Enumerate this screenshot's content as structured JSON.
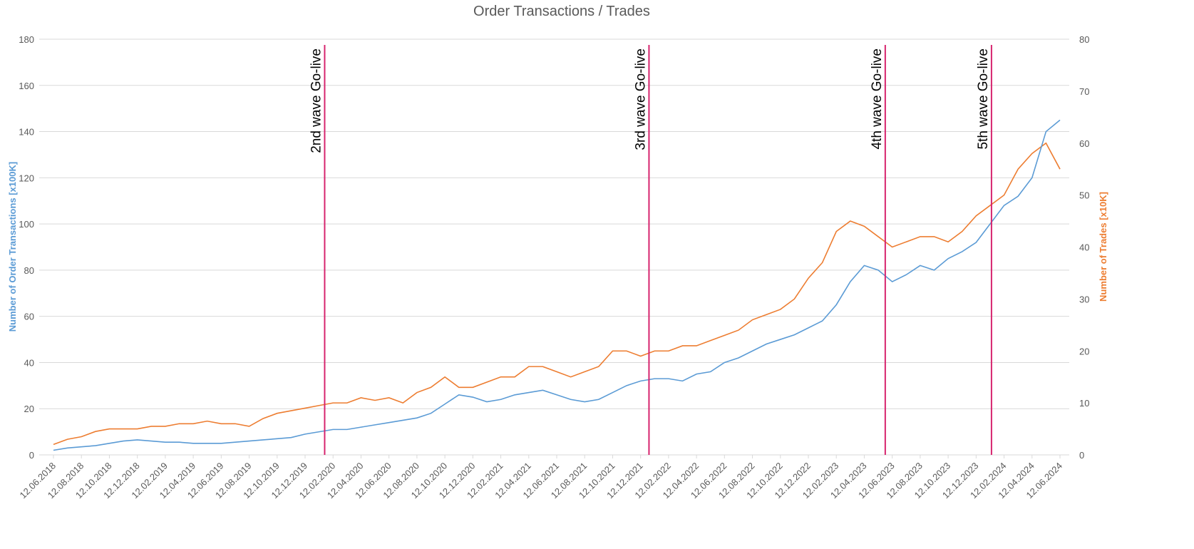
{
  "chart_data": {
    "type": "line",
    "title": "Order Transactions / Trades",
    "ylabel": "Number of Order Transactions  [x100K]",
    "y2label": "Number of Trades [x10K]",
    "xlim": [
      0,
      72
    ],
    "xticks": [
      {
        "value": 0,
        "label": "12.06.2018"
      },
      {
        "value": 2,
        "label": "12.08.2018"
      },
      {
        "value": 4,
        "label": "12.10.2018"
      },
      {
        "value": 6,
        "label": "12.12.2018"
      },
      {
        "value": 8,
        "label": "12.02.2019"
      },
      {
        "value": 10,
        "label": "12.04.2019"
      },
      {
        "value": 12,
        "label": "12.06.2019"
      },
      {
        "value": 14,
        "label": "12.08.2019"
      },
      {
        "value": 16,
        "label": "12.10.2019"
      },
      {
        "value": 18,
        "label": "12.12.2019"
      },
      {
        "value": 20,
        "label": "12.02.2020"
      },
      {
        "value": 22,
        "label": "12.04.2020"
      },
      {
        "value": 24,
        "label": "12.06.2020"
      },
      {
        "value": 26,
        "label": "12.08.2020"
      },
      {
        "value": 28,
        "label": "12.10.2020"
      },
      {
        "value": 30,
        "label": "12.12.2020"
      },
      {
        "value": 32,
        "label": "12.02.2021"
      },
      {
        "value": 34,
        "label": "12.04.2021"
      },
      {
        "value": 36,
        "label": "12.06.2021"
      },
      {
        "value": 38,
        "label": "12.08.2021"
      },
      {
        "value": 40,
        "label": "12.10.2021"
      },
      {
        "value": 42,
        "label": "12.12.2021"
      },
      {
        "value": 44,
        "label": "12.02.2022"
      },
      {
        "value": 46,
        "label": "12.04.2022"
      },
      {
        "value": 48,
        "label": "12.06.2022"
      },
      {
        "value": 50,
        "label": "12.08.2022"
      },
      {
        "value": 52,
        "label": "12.10.2022"
      },
      {
        "value": 54,
        "label": "12.12.2022"
      },
      {
        "value": 56,
        "label": "12.02.2023"
      },
      {
        "value": 58,
        "label": "12.04.2023"
      },
      {
        "value": 60,
        "label": "12.06.2023"
      },
      {
        "value": 62,
        "label": "12.08.2023"
      },
      {
        "value": 64,
        "label": "12.10.2023"
      },
      {
        "value": 66,
        "label": "12.12.2023"
      },
      {
        "value": 68,
        "label": "12.02.2024"
      },
      {
        "value": 70,
        "label": "12.04.2024"
      },
      {
        "value": 72,
        "label": "12.06.2024"
      }
    ],
    "ylim": [
      0,
      180
    ],
    "yticks": [
      0,
      20,
      40,
      60,
      80,
      100,
      120,
      140,
      160,
      180
    ],
    "y2lim": [
      0,
      80
    ],
    "y2ticks": [
      0,
      10,
      20,
      30,
      40,
      50,
      60,
      70,
      80
    ],
    "grid": true,
    "x": [
      0,
      1,
      2,
      3,
      4,
      5,
      6,
      7,
      8,
      9,
      10,
      11,
      12,
      13,
      14,
      15,
      16,
      17,
      18,
      19,
      20,
      21,
      22,
      23,
      24,
      25,
      26,
      27,
      28,
      29,
      30,
      31,
      32,
      33,
      34,
      35,
      36,
      37,
      38,
      39,
      40,
      41,
      42,
      43,
      44,
      45,
      46,
      47,
      48,
      49,
      50,
      51,
      52,
      53,
      54,
      55,
      56,
      57,
      58,
      59,
      60,
      61,
      62,
      63,
      64,
      65,
      66,
      67,
      68,
      69,
      70,
      71,
      72
    ],
    "series": [
      {
        "name": "Number of Order Transactions",
        "color": "#5b9bd5",
        "axis": "y",
        "values": [
          2,
          3,
          3.5,
          4,
          5,
          6,
          6.5,
          6,
          5.5,
          5.5,
          5,
          5,
          5,
          5.5,
          6,
          6.5,
          7,
          7.5,
          9,
          10,
          11,
          11,
          12,
          13,
          14,
          15,
          16,
          18,
          22,
          26,
          25,
          23,
          24,
          26,
          27,
          28,
          26,
          24,
          23,
          24,
          27,
          30,
          32,
          33,
          33,
          32,
          35,
          36,
          40,
          42,
          45,
          48,
          50,
          52,
          55,
          58,
          65,
          75,
          82,
          80,
          75,
          78,
          82,
          80,
          85,
          88,
          92,
          100,
          108,
          112,
          120,
          140,
          145
        ]
      },
      {
        "name": "Number of Trades",
        "color": "#ed7d31",
        "axis": "y2",
        "values": [
          2,
          3,
          3.5,
          4.5,
          5,
          5,
          5,
          5.5,
          5.5,
          6,
          6,
          6.5,
          6,
          6,
          5.5,
          7,
          8,
          8.5,
          9,
          9.5,
          10,
          10,
          11,
          10.5,
          11,
          10,
          12,
          13,
          15,
          13,
          13,
          14,
          15,
          15,
          17,
          17,
          16,
          15,
          16,
          17,
          20,
          20,
          19,
          20,
          20,
          21,
          21,
          22,
          23,
          24,
          26,
          27,
          28,
          30,
          34,
          37,
          43,
          45,
          44,
          42,
          40,
          41,
          42,
          42,
          41,
          43,
          46,
          48,
          50,
          55,
          58,
          60,
          55
        ]
      }
    ],
    "annotations": [
      {
        "x": 19.4,
        "text": "2nd wave Go-live"
      },
      {
        "x": 42.6,
        "text": "3rd wave Go-live"
      },
      {
        "x": 59.5,
        "text": "4th wave Go-live"
      },
      {
        "x": 67.1,
        "text": "5th wave Go-live"
      }
    ],
    "annotation_color": "#d6246e"
  }
}
